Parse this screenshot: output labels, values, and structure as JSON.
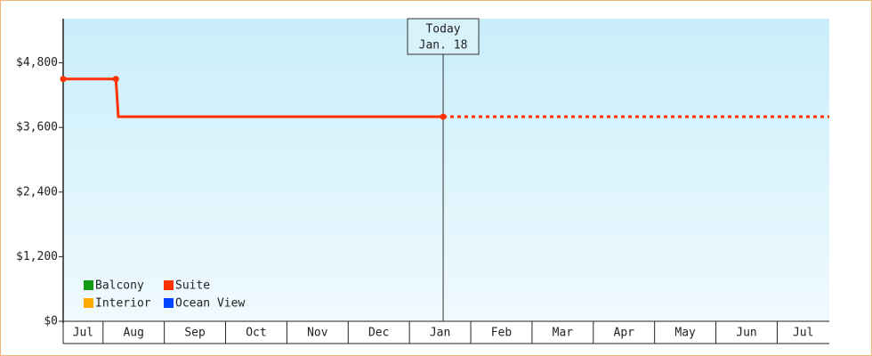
{
  "chart_data": {
    "type": "line",
    "categories": [
      "Jul",
      "Aug",
      "Sep",
      "Oct",
      "Nov",
      "Dec",
      "Jan",
      "Feb",
      "Mar",
      "Apr",
      "May",
      "Jun",
      "Jul"
    ],
    "xlim": [
      0,
      12.5
    ],
    "xticks": [
      0.65,
      1.65,
      2.65,
      3.65,
      4.65,
      5.65,
      6.65,
      7.65,
      8.65,
      9.65,
      10.65,
      11.65
    ],
    "ylim": [
      0,
      5620
    ],
    "yticks": [
      {
        "value": 0,
        "label": "$0"
      },
      {
        "value": 1200,
        "label": "$1,200"
      },
      {
        "value": 2400,
        "label": "$2,400"
      },
      {
        "value": 3600,
        "label": "$3,600"
      },
      {
        "value": 4800,
        "label": "$4,800"
      }
    ],
    "annotation": {
      "x": 6.2,
      "label": "Today",
      "date": "Jan. 18"
    },
    "series": [
      {
        "name": "Balcony",
        "color": "#119911",
        "x": [],
        "values": []
      },
      {
        "name": "Suite",
        "color": "#ff3300",
        "x": [
          0,
          0.86,
          0.9,
          6.2
        ],
        "values": [
          4500,
          4500,
          3800,
          3800
        ],
        "projection": {
          "x": [
            6.2,
            12.5
          ],
          "values": [
            3800,
            3800
          ]
        }
      },
      {
        "name": "Interior",
        "color": "#ffaa00",
        "x": [],
        "values": []
      },
      {
        "name": "Ocean View",
        "color": "#0044ff",
        "x": [],
        "values": []
      }
    ]
  }
}
